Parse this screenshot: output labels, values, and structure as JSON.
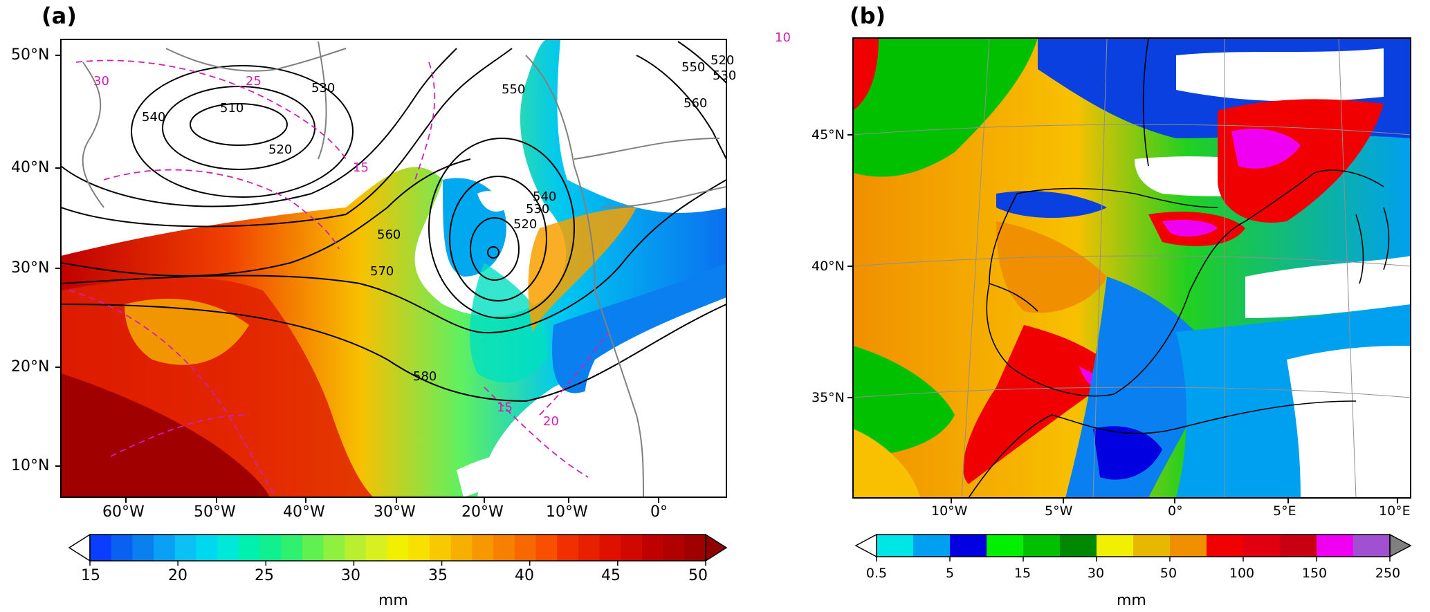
{
  "panel_a": {
    "label": "(a)",
    "lat_ticks": [
      "50°N",
      "40°N",
      "30°N",
      "20°N",
      "10°N"
    ],
    "lon_ticks": [
      "60°W",
      "50°W",
      "40°W",
      "30°W",
      "20°W",
      "10°W",
      "0°"
    ],
    "contour_labels": [
      "510",
      "520",
      "530",
      "540",
      "550",
      "560",
      "570",
      "580",
      "520",
      "530",
      "540",
      "550",
      "520",
      "530",
      "560"
    ],
    "dashed_labels": [
      "30",
      "25",
      "15",
      "10",
      "20",
      "15"
    ],
    "colorbar": {
      "ticks": [
        "15",
        "20",
        "25",
        "30",
        "35",
        "40",
        "45",
        "50"
      ],
      "unit": "mm",
      "colors": [
        "#0a3dff",
        "#0a60f0",
        "#0a80f0",
        "#0aa0f5",
        "#0ac0f5",
        "#00d8f0",
        "#00e8d8",
        "#00f0b0",
        "#10f090",
        "#30f070",
        "#60f050",
        "#90f040",
        "#b8f030",
        "#d8f020",
        "#f0f000",
        "#f8e000",
        "#f8c800",
        "#f8b000",
        "#f89800",
        "#f88000",
        "#f86800",
        "#f85000",
        "#f03000",
        "#e82000",
        "#e01000",
        "#d00800",
        "#c00000",
        "#b00000",
        "#a00000",
        "#900000"
      ]
    }
  },
  "panel_b": {
    "label": "(b)",
    "lat_ticks": [
      "45°N",
      "40°N",
      "35°N"
    ],
    "lon_ticks": [
      "10°W",
      "5°W",
      "0°",
      "5°E",
      "10°E"
    ],
    "colorbar": {
      "ticks": [
        "0.5",
        "5",
        "15",
        "30",
        "50",
        "100",
        "150",
        "250"
      ],
      "unit": "mm",
      "colors": [
        "#00e5e5",
        "#00a0f0",
        "#0000e0",
        "#00f000",
        "#00c000",
        "#008800",
        "#f0f000",
        "#e8b800",
        "#f09000",
        "#f00000",
        "#e00010",
        "#c80010",
        "#f000f0",
        "#a050d0",
        "#808080"
      ]
    }
  }
}
